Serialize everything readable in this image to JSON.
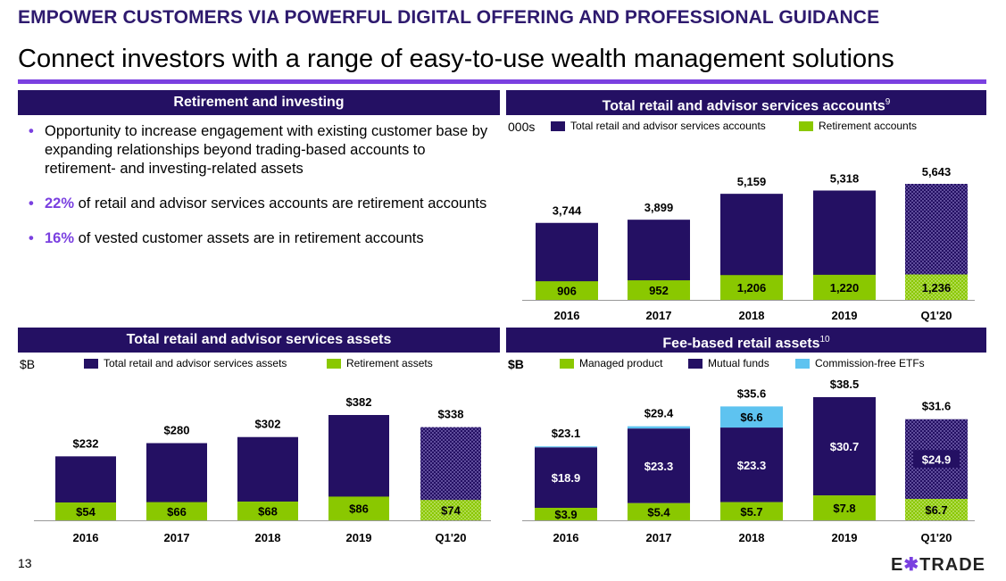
{
  "headline": "EMPOWER CUSTOMERS VIA POWERFUL DIGITAL OFFERING AND PROFESSIONAL GUIDANCE",
  "subheadline": "Connect investors with a range of easy-to-use wealth management solutions",
  "colors": {
    "dark": "#241063",
    "green": "#8ac800",
    "purple": "#7a40e0",
    "lightblue": "#5ec3f0"
  },
  "panels": {
    "retirement": {
      "title": "Retirement and investing",
      "bullets": [
        {
          "highlight": "",
          "text": "Opportunity to increase engagement with existing customer base by expanding relationships beyond trading-based accounts to retirement- and investing-related assets"
        },
        {
          "highlight": "22%",
          "text": " of retail and advisor services accounts are retirement accounts"
        },
        {
          "highlight": "16%",
          "text": " of vested customer assets are in retirement accounts"
        }
      ]
    },
    "accounts": {
      "title": "Total retail and advisor services accounts",
      "footnote": "9"
    },
    "assets": {
      "title": "Total retail and advisor services assets"
    },
    "fee": {
      "title": "Fee-based retail assets",
      "footnote": "10"
    }
  },
  "page_number": "13",
  "logo": {
    "left": "E",
    "star": "✱",
    "right": "TRADE"
  },
  "chart_data": [
    {
      "id": "accounts",
      "type": "bar",
      "stacked": true,
      "unit": "000s",
      "categories": [
        "2016",
        "2017",
        "2018",
        "2019",
        "Q1'20"
      ],
      "series": [
        {
          "name": "Total retail and advisor services accounts",
          "color": "#241063",
          "values": [
            3744,
            3899,
            5159,
            5318,
            5643
          ],
          "labels": [
            "3,744",
            "3,899",
            "5,159",
            "5,318",
            "5,643"
          ]
        },
        {
          "name": "Retirement accounts",
          "color": "#8ac800",
          "values": [
            906,
            952,
            1206,
            1220,
            1236
          ],
          "labels": [
            "906",
            "952",
            "1,206",
            "1,220",
            "1,236"
          ]
        }
      ],
      "patterned_last": true
    },
    {
      "id": "assets",
      "type": "bar",
      "stacked": true,
      "unit": "$B",
      "categories": [
        "2016",
        "2017",
        "2018",
        "2019",
        "Q1'20"
      ],
      "series": [
        {
          "name": "Total retail and advisor services assets",
          "color": "#241063",
          "values": [
            232,
            280,
            302,
            382,
            338
          ],
          "labels": [
            "$232",
            "$280",
            "$302",
            "$382",
            "$338"
          ]
        },
        {
          "name": "Retirement assets",
          "color": "#8ac800",
          "values": [
            54,
            66,
            68,
            86,
            74
          ],
          "labels": [
            "$54",
            "$66",
            "$68",
            "$86",
            "$74"
          ]
        }
      ],
      "patterned_last": true
    },
    {
      "id": "fee",
      "type": "bar",
      "stacked": true,
      "unit": "$B",
      "categories": [
        "2016",
        "2017",
        "2018",
        "2019",
        "Q1'20"
      ],
      "totals": [
        23.1,
        29.4,
        35.6,
        38.5,
        31.6
      ],
      "total_labels": [
        "$23.1",
        "$29.4",
        "$35.6",
        "$38.5",
        "$31.6"
      ],
      "series": [
        {
          "name": "Managed product",
          "color": "#8ac800",
          "values": [
            3.9,
            5.4,
            5.7,
            7.8,
            6.7
          ],
          "labels": [
            "$3.9",
            "$5.4",
            "$5.7",
            "$7.8",
            "$6.7"
          ]
        },
        {
          "name": "Mutual funds",
          "color": "#241063",
          "values": [
            18.9,
            23.3,
            23.3,
            30.7,
            24.9
          ],
          "labels": [
            "$18.9",
            "$23.3",
            "$23.3",
            "$30.7",
            "$24.9"
          ]
        },
        {
          "name": "Commission-free ETFs",
          "color": "#5ec3f0",
          "values": [
            0.3,
            0.7,
            6.6,
            0,
            0
          ],
          "labels": [
            "",
            "",
            "$6.6",
            "",
            ""
          ]
        }
      ],
      "patterned_last": true
    }
  ]
}
